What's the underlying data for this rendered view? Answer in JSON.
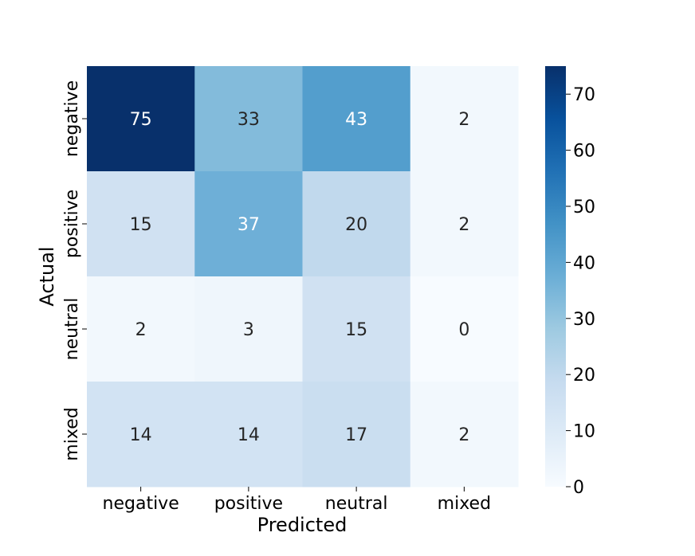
{
  "chart_data": {
    "type": "heatmap",
    "title": "",
    "xlabel": "Predicted",
    "ylabel": "Actual",
    "x_categories": [
      "negative",
      "positive",
      "neutral",
      "mixed"
    ],
    "y_categories": [
      "negative",
      "positive",
      "neutral",
      "mixed"
    ],
    "values": [
      [
        75,
        33,
        43,
        2
      ],
      [
        15,
        37,
        20,
        2
      ],
      [
        2,
        3,
        15,
        0
      ],
      [
        14,
        14,
        17,
        2
      ]
    ],
    "colormap": "Blues",
    "color_range": [
      0,
      75
    ],
    "colorbar_ticks": [
      0,
      10,
      20,
      30,
      40,
      50,
      60,
      70
    ],
    "annotations": true
  }
}
